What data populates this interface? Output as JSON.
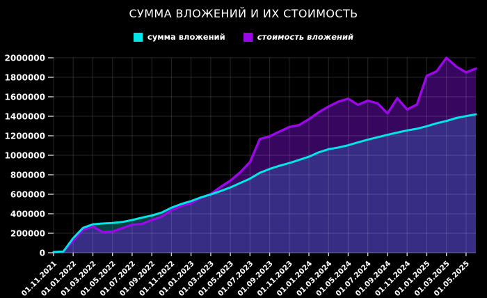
{
  "title": "СУММА ВЛОЖЕНИЙ И ИХ СТОИМОСТЬ",
  "colors": {
    "background": "#000000",
    "text": "#ffffff",
    "grid": "rgba(255,255,255,0.15)",
    "tick": "#cfcfcf",
    "invested_line": "#00e5e5",
    "value_line": "#9a08e8"
  },
  "chart_data": {
    "type": "area",
    "title": "СУММА ВЛОЖЕНИЙ И ИХ СТОИМОСТЬ",
    "legend_position": "top",
    "grid": true,
    "ylim": [
      0,
      2000000
    ],
    "y_ticks": [
      0,
      200000,
      400000,
      600000,
      800000,
      1000000,
      1200000,
      1400000,
      1600000,
      1800000,
      2000000
    ],
    "tick_every": 2,
    "x_tick_labels": [
      "01.11.2021",
      "01.01.2022",
      "01.03.2022",
      "01.05.2022",
      "01.07.2022",
      "01.09.2022",
      "01.11.2022",
      "01.01.2023",
      "01.03.2023",
      "01.05.2023",
      "01.07.2023",
      "01.09.2023",
      "01.11.2023",
      "01.01.2024",
      "01.03.2024",
      "01.05.2024",
      "01.07.2024",
      "01.09.2024",
      "01.11.2024",
      "01.01.2025",
      "01.03.2025",
      "01.05.2025"
    ],
    "x_note": "monthly points from 11.2021, data extends one month past last tick",
    "series": [
      {
        "name": "сумма вложений",
        "color": "#00e5e5",
        "fill": "rgba(0,225,225,0.30)",
        "values": [
          8000,
          13000,
          150000,
          255000,
          292000,
          300000,
          305000,
          316000,
          336000,
          360000,
          382000,
          412000,
          462000,
          500000,
          530000,
          568000,
          598000,
          633000,
          670000,
          715000,
          760000,
          820000,
          860000,
          892000,
          920000,
          952000,
          985000,
          1030000,
          1062000,
          1080000,
          1103000,
          1133000,
          1160000,
          1185000,
          1210000,
          1233000,
          1255000,
          1272000,
          1298000,
          1328000,
          1352000,
          1382000,
          1402000,
          1420000
        ]
      },
      {
        "name": "стоимость вложений",
        "color": "#9a08e8",
        "fill": "rgba(130,15,225,0.42)",
        "values": [
          5000,
          11000,
          121000,
          235000,
          271000,
          210000,
          217000,
          252000,
          288000,
          295000,
          336000,
          371000,
          436000,
          479000,
          507000,
          562000,
          602000,
          674000,
          740000,
          824000,
          930000,
          1165000,
          1195000,
          1243000,
          1290000,
          1310000,
          1370000,
          1440000,
          1500000,
          1550000,
          1580000,
          1517000,
          1560000,
          1533000,
          1430000,
          1585000,
          1470000,
          1520000,
          1815000,
          1860000,
          2000000,
          1910000,
          1850000,
          1890000
        ]
      }
    ]
  }
}
